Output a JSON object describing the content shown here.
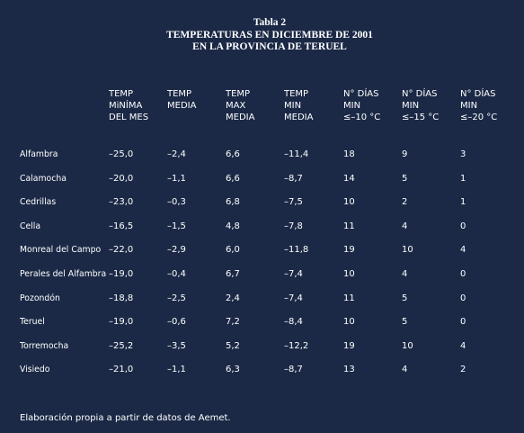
{
  "title": [
    "Tabla 2",
    "TEMPERATURAS EN DICIEMBRE DE 2001",
    "EN LA PROVINCIA DE TERUEL"
  ],
  "table": {
    "header": [
      [
        "TEMP",
        "MiNÍMA",
        "DEL MES"
      ],
      [
        "TEMP",
        "MEDIA"
      ],
      [
        "TEMP",
        "MAX",
        "MEDIA"
      ],
      [
        "TEMP",
        "MIN",
        "MEDIA"
      ],
      [
        "N° DÍAS",
        "MIN",
        "≤–10 °C"
      ],
      [
        "N° DÍAS",
        "MIN",
        "≤–15 °C"
      ],
      [
        "N° DÍAS",
        "MIN",
        "≤–20 °C"
      ]
    ],
    "rows": [
      [
        "Alfambra",
        "–25,0",
        "–2,4",
        "6,6",
        "–11,4",
        "18",
        "9",
        "3"
      ],
      [
        "Calamocha",
        "–20,0",
        "–1,1",
        "6,6",
        "–8,7",
        "14",
        "5",
        "1"
      ],
      [
        "Cedrillas",
        "–23,0",
        "–0,3",
        "6,8",
        "–7,5",
        "10",
        "2",
        "1"
      ],
      [
        "Cella",
        "–16,5",
        "–1,5",
        "4,8",
        "–7,8",
        "11",
        "4",
        "0"
      ],
      [
        "Monreal del Campo",
        "–22,0",
        "–2,9",
        "6,0",
        "–11,8",
        "19",
        "10",
        "4"
      ],
      [
        "Perales del Alfambra",
        "–19,0",
        "–0,4",
        "6,7",
        "–7,4",
        "10",
        "4",
        "0"
      ],
      [
        "Pozondón",
        "–18,8",
        "–2,5",
        "2,4",
        "–7,4",
        "11",
        "5",
        "0"
      ],
      [
        "Teruel",
        "–19,0",
        "–0,6",
        "7,2",
        "–8,4",
        "10",
        "5",
        "0"
      ],
      [
        "Torremocha",
        "–25,2",
        "–3,5",
        "5,2",
        "–12,2",
        "19",
        "10",
        "4"
      ],
      [
        "Visiedo",
        "–21,0",
        "–1,1",
        "6,3",
        "–8,7",
        "13",
        "4",
        "2"
      ]
    ]
  },
  "footnote": "Elaboración propia a partir de datos de Aemet."
}
